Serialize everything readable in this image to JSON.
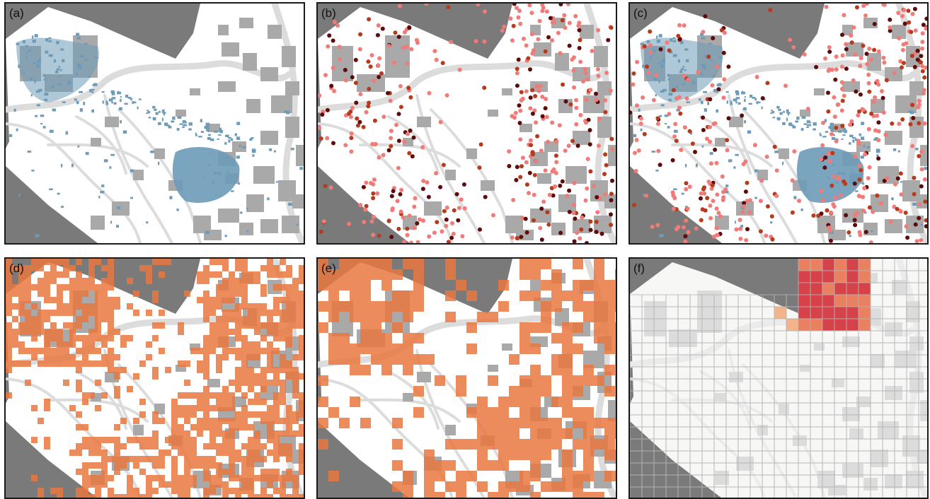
{
  "panels": [
    {
      "label": "(a)",
      "overlay": "blue-flood"
    },
    {
      "label": "(b)",
      "overlay": "point-observations"
    },
    {
      "label": "(c)",
      "overlay": "points-and-flood"
    },
    {
      "label": "(d)",
      "overlay": "orange-grid-fine"
    },
    {
      "label": "(e)",
      "overlay": "orange-grid-coarse"
    },
    {
      "label": "(f)",
      "overlay": "grid-lines"
    }
  ],
  "colors": {
    "sea": "#7a7a7a",
    "land": "#ffffff",
    "building": "#a9a9a9",
    "road": "#dcdcdc",
    "flood": "#6d9bb8",
    "point_light": "#f07b78",
    "point_mid": "#b63a1c",
    "point_dark": "#5e0b0b",
    "grid_fill": "#e9773e",
    "grid_line": "#b5b5b5",
    "hot_high": "#d6424a",
    "hot_mid": "#e98060",
    "hot_low": "#f2b48a"
  }
}
